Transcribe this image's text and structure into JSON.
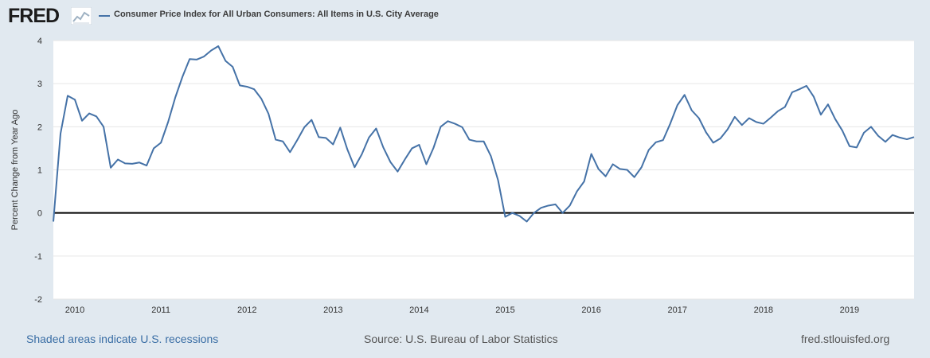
{
  "header": {
    "logo_text": "FRED",
    "legend_label": "Consumer Price Index for All Urban Consumers: All Items in U.S. City Average"
  },
  "footer": {
    "recessions_note": "Shaded areas indicate U.S. recessions",
    "source": "Source: U.S. Bureau of Labor Statistics",
    "site": "fred.stlouisfed.org"
  },
  "colors": {
    "background": "#e1e9f0",
    "plot_area": "#ffffff",
    "series": "#4572a7",
    "zero_line": "#000000",
    "gridline": "#e6e6e6"
  },
  "chart_data": {
    "type": "line",
    "ylabel": "Percent Change from Year Ago",
    "xlabel": "",
    "ylim": [
      -2,
      4
    ],
    "yticks": [
      4,
      3,
      2,
      1,
      0,
      -1,
      -2
    ],
    "x_tick_labels": [
      "2010",
      "2011",
      "2012",
      "2013",
      "2014",
      "2015",
      "2016",
      "2017",
      "2018",
      "2019"
    ],
    "xlim": [
      "2009-10",
      "2019-10"
    ],
    "grid": "horizontal",
    "reference_line": 0,
    "series": [
      {
        "x": [
          "2009-10",
          "2009-11",
          "2009-12",
          "2010-01",
          "2010-02",
          "2010-03",
          "2010-04",
          "2010-05",
          "2010-06",
          "2010-07",
          "2010-08",
          "2010-09",
          "2010-10",
          "2010-11",
          "2010-12",
          "2011-01",
          "2011-02",
          "2011-03",
          "2011-04",
          "2011-05",
          "2011-06",
          "2011-07",
          "2011-08",
          "2011-09",
          "2011-10",
          "2011-11",
          "2011-12",
          "2012-01",
          "2012-02",
          "2012-03",
          "2012-04",
          "2012-05",
          "2012-06",
          "2012-07",
          "2012-08",
          "2012-09",
          "2012-10",
          "2012-11",
          "2012-12",
          "2013-01",
          "2013-02",
          "2013-03",
          "2013-04",
          "2013-05",
          "2013-06",
          "2013-07",
          "2013-08",
          "2013-09",
          "2013-10",
          "2013-11",
          "2013-12",
          "2014-01",
          "2014-02",
          "2014-03",
          "2014-04",
          "2014-05",
          "2014-06",
          "2014-07",
          "2014-08",
          "2014-09",
          "2014-10",
          "2014-11",
          "2014-12",
          "2015-01",
          "2015-02",
          "2015-03",
          "2015-04",
          "2015-05",
          "2015-06",
          "2015-07",
          "2015-08",
          "2015-09",
          "2015-10",
          "2015-11",
          "2015-12",
          "2016-01",
          "2016-02",
          "2016-03",
          "2016-04",
          "2016-05",
          "2016-06",
          "2016-07",
          "2016-08",
          "2016-09",
          "2016-10",
          "2016-11",
          "2016-12",
          "2017-01",
          "2017-02",
          "2017-03",
          "2017-04",
          "2017-05",
          "2017-06",
          "2017-07",
          "2017-08",
          "2017-09",
          "2017-10",
          "2017-11",
          "2017-12",
          "2018-01",
          "2018-02",
          "2018-03",
          "2018-04",
          "2018-05",
          "2018-06",
          "2018-07",
          "2018-08",
          "2018-09",
          "2018-10",
          "2018-11",
          "2018-12",
          "2019-01",
          "2019-02",
          "2019-03",
          "2019-04",
          "2019-05",
          "2019-06",
          "2019-07",
          "2019-08",
          "2019-09",
          "2019-10"
        ],
        "values": [
          -0.2,
          1.84,
          2.72,
          2.63,
          2.14,
          2.31,
          2.24,
          2.0,
          1.05,
          1.24,
          1.15,
          1.14,
          1.17,
          1.1,
          1.5,
          1.63,
          2.11,
          2.68,
          3.16,
          3.57,
          3.56,
          3.63,
          3.77,
          3.87,
          3.53,
          3.39,
          2.96,
          2.93,
          2.87,
          2.65,
          2.3,
          1.7,
          1.66,
          1.41,
          1.69,
          1.99,
          2.16,
          1.76,
          1.74,
          1.59,
          1.98,
          1.47,
          1.06,
          1.36,
          1.75,
          1.96,
          1.52,
          1.18,
          0.96,
          1.24,
          1.5,
          1.58,
          1.13,
          1.51,
          2.0,
          2.13,
          2.07,
          1.99,
          1.7,
          1.66,
          1.66,
          1.32,
          0.76,
          -0.09,
          0.0,
          -0.07,
          -0.2,
          0.0,
          0.12,
          0.17,
          0.2,
          0.0,
          0.17,
          0.5,
          0.73,
          1.37,
          1.02,
          0.85,
          1.13,
          1.02,
          1.0,
          0.83,
          1.06,
          1.46,
          1.64,
          1.69,
          2.07,
          2.5,
          2.74,
          2.38,
          2.2,
          1.87,
          1.63,
          1.73,
          1.94,
          2.23,
          2.04,
          2.2,
          2.11,
          2.07,
          2.21,
          2.36,
          2.46,
          2.8,
          2.87,
          2.95,
          2.7,
          2.28,
          2.52,
          2.18,
          1.91,
          1.55,
          1.52,
          1.86,
          2.0,
          1.79,
          1.65,
          1.81,
          1.75,
          1.71,
          1.76
        ]
      }
    ]
  }
}
